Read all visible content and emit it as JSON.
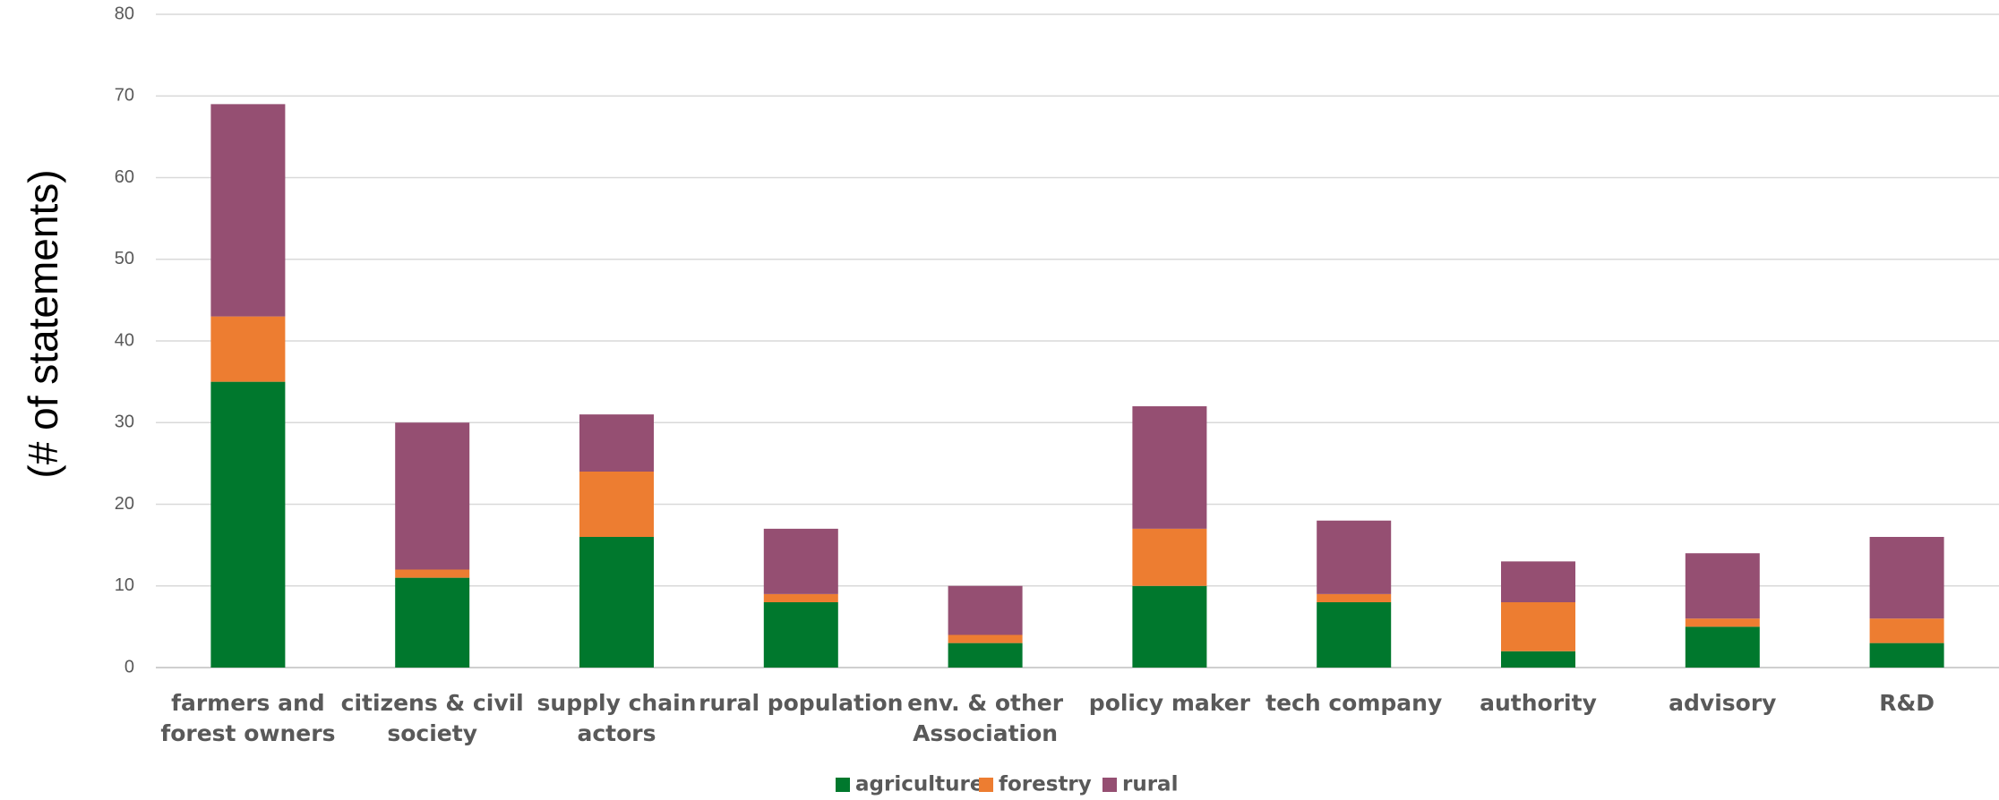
{
  "chart_data": {
    "type": "bar",
    "stacked": true,
    "title": "",
    "xlabel": "",
    "ylabel": "(# of statements)",
    "ylim": [
      0,
      80
    ],
    "yticks": [
      0,
      10,
      20,
      30,
      40,
      50,
      60,
      70,
      80
    ],
    "grid": true,
    "legend_position": "bottom",
    "categories": [
      [
        "farmers and",
        "forest owners"
      ],
      [
        "citizens & civil",
        "society"
      ],
      [
        "supply chain",
        "actors"
      ],
      [
        "rural population"
      ],
      [
        "env. & other",
        "Association"
      ],
      [
        "policy maker"
      ],
      [
        "tech company"
      ],
      [
        "authority"
      ],
      [
        "advisory"
      ],
      [
        "R&D"
      ]
    ],
    "series": [
      {
        "name": "agriculture",
        "color": "#00782D",
        "values": [
          35,
          11,
          16,
          8,
          3,
          10,
          8,
          2,
          5,
          3
        ]
      },
      {
        "name": "forestry",
        "color": "#ED7D31",
        "values": [
          8,
          1,
          8,
          1,
          1,
          7,
          1,
          6,
          1,
          3
        ]
      },
      {
        "name": "rural",
        "color": "#954F72",
        "values": [
          26,
          18,
          7,
          8,
          6,
          15,
          9,
          5,
          8,
          10
        ]
      }
    ]
  }
}
